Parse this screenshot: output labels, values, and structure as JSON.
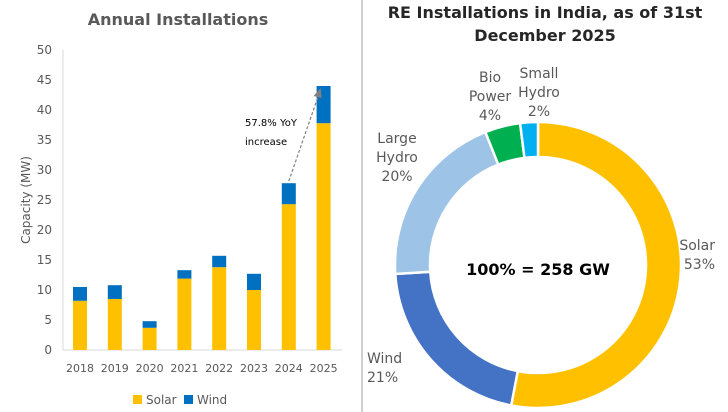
{
  "chart_data": [
    {
      "type": "bar",
      "stacked": true,
      "title": "Annual Installations",
      "xlabel": "",
      "ylabel": "Capacity (MW)",
      "ylim": [
        0,
        50
      ],
      "yticks": [
        "0",
        "5",
        "10",
        "15",
        "20",
        "25",
        "30",
        "35",
        "40",
        "45",
        "50"
      ],
      "categories": [
        "2018",
        "2019",
        "2020",
        "2021",
        "2022",
        "2023",
        "2024",
        "2025"
      ],
      "series": [
        {
          "name": "Solar",
          "color": "#FFC000",
          "values": [
            8.2,
            8.5,
            3.7,
            11.9,
            13.8,
            10.0,
            24.3,
            37.8
          ]
        },
        {
          "name": "Wind",
          "color": "#0070C0",
          "values": [
            2.3,
            2.3,
            1.1,
            1.4,
            1.9,
            2.7,
            3.5,
            6.2
          ]
        }
      ],
      "annotation": {
        "line1": "57.8% YoY",
        "line2": "increase"
      },
      "legend": "bottom",
      "grid": false
    },
    {
      "type": "pie",
      "donut": true,
      "title_line1": "RE Installations in India, as of 31st",
      "title_line2": "December 2025",
      "center_label": "100% = 258 GW",
      "slices": [
        {
          "label": [
            "Solar"
          ],
          "pct": "53%",
          "value": 53,
          "color": "#FFC000"
        },
        {
          "label": [
            "Wind"
          ],
          "pct": "21%",
          "value": 21,
          "color": "#4472C4"
        },
        {
          "label": [
            "Large",
            "Hydro"
          ],
          "pct": "20%",
          "value": 20,
          "color": "#9DC3E6"
        },
        {
          "label": [
            "Bio",
            "Power"
          ],
          "pct": "4%",
          "value": 4,
          "color": "#00B050"
        },
        {
          "label": [
            "Small",
            "Hydro"
          ],
          "pct": "2%",
          "value": 2,
          "color": "#00B0F0"
        }
      ]
    }
  ]
}
